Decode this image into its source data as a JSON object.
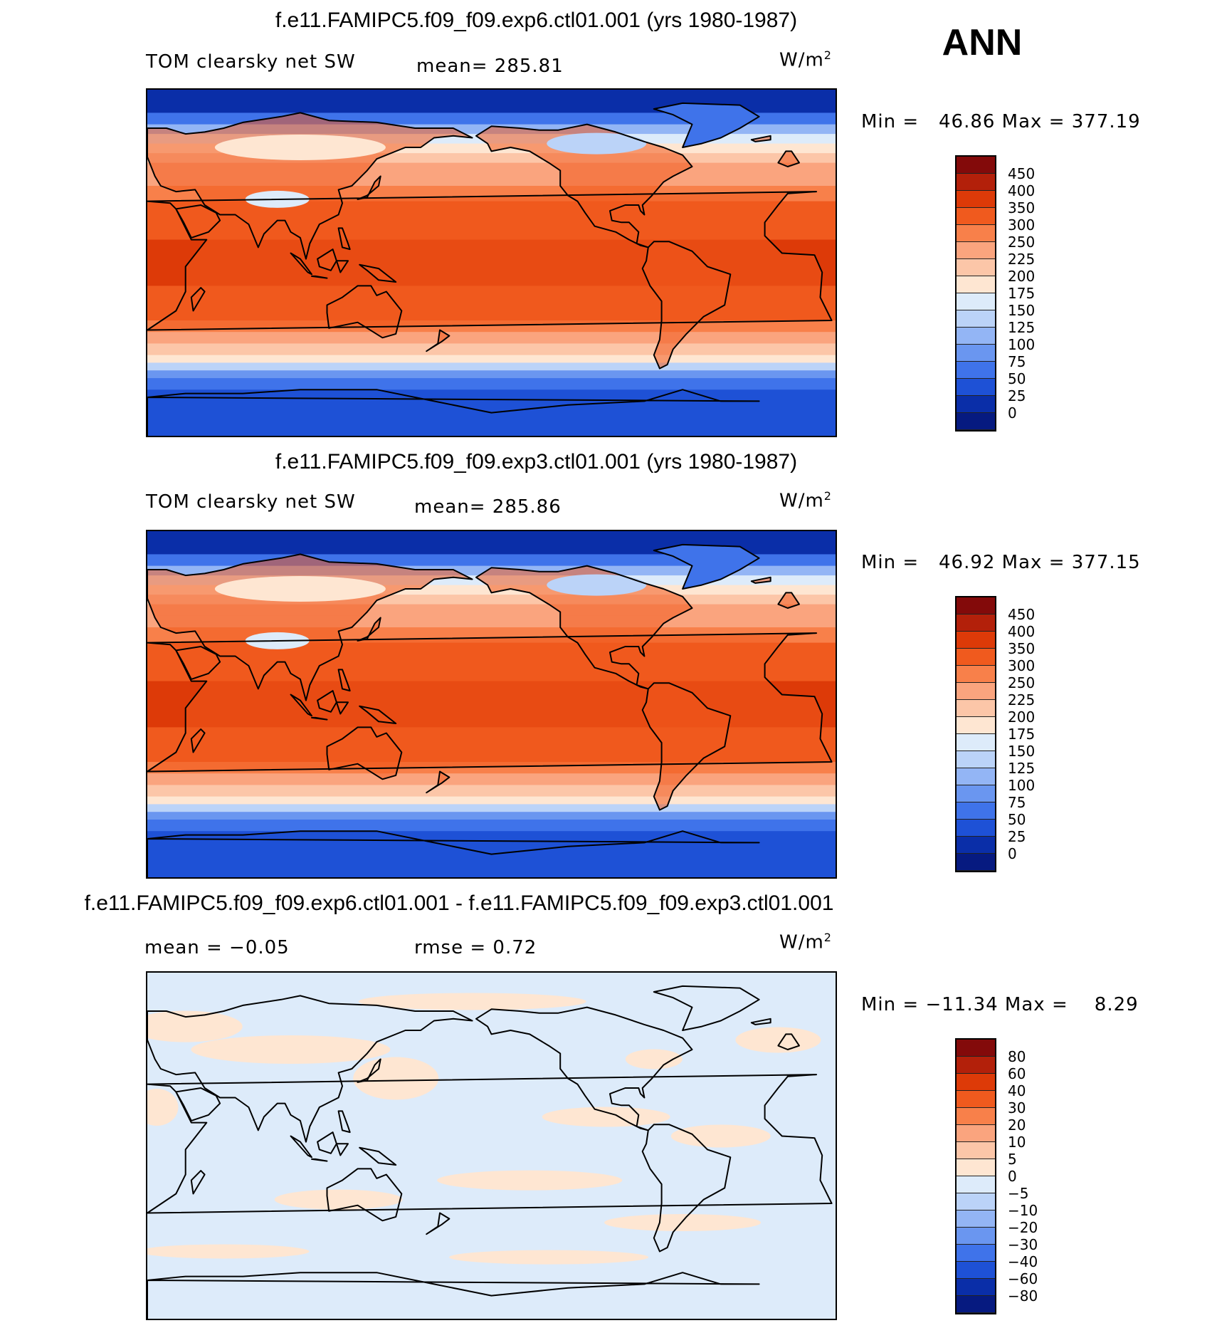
{
  "season": "ANN",
  "units_text": "W/m",
  "units_sup": "2",
  "panels": [
    {
      "title": "f.e11.FAMIPC5.f09_f09.exp6.ctl01.001 (yrs 1980-1987)",
      "left_label": "TOM clearsky net SW",
      "mid_label": "mean= 285.81",
      "stats": "Min =   46.86 Max = 377.19",
      "colorbar": {
        "labels": [
          "450",
          "400",
          "350",
          "300",
          "250",
          "225",
          "200",
          "175",
          "150",
          "125",
          "100",
          "75",
          "50",
          "25",
          "0"
        ],
        "colors": [
          "#830A0A",
          "#B3200A",
          "#DD3A08",
          "#F05A1E",
          "#F8804A",
          "#FAA47E",
          "#FCC6A8",
          "#FEE6D2",
          "#DDEBFA",
          "#BBD3F8",
          "#93B5F5",
          "#6A96F0",
          "#3F73EA",
          "#1E51D6",
          "#0A2EA8",
          "#061A80"
        ]
      }
    },
    {
      "title": "f.e11.FAMIPC5.f09_f09.exp3.ctl01.001 (yrs 1980-1987)",
      "left_label": "TOM clearsky net SW",
      "mid_label": "mean= 285.86",
      "stats": "Min =   46.92 Max = 377.15",
      "colorbar": {
        "labels": [
          "450",
          "400",
          "350",
          "300",
          "250",
          "225",
          "200",
          "175",
          "150",
          "125",
          "100",
          "75",
          "50",
          "25",
          "0"
        ],
        "colors": [
          "#830A0A",
          "#B3200A",
          "#DD3A08",
          "#F05A1E",
          "#F8804A",
          "#FAA47E",
          "#FCC6A8",
          "#FEE6D2",
          "#DDEBFA",
          "#BBD3F8",
          "#93B5F5",
          "#6A96F0",
          "#3F73EA",
          "#1E51D6",
          "#0A2EA8",
          "#061A80"
        ]
      }
    },
    {
      "title": "f.e11.FAMIPC5.f09_f09.exp6.ctl01.001 - f.e11.FAMIPC5.f09_f09.exp3.ctl01.001",
      "left_label": "mean =   −0.05",
      "mid_label": "rmse =    0.72",
      "stats": "Min = −11.34 Max =    8.29",
      "colorbar": {
        "labels": [
          "80",
          "60",
          "40",
          "30",
          "20",
          "10",
          "5",
          "0",
          "−5",
          "−10",
          "−20",
          "−30",
          "−40",
          "−60",
          "−80"
        ],
        "colors": [
          "#830A0A",
          "#B3200A",
          "#DD3A08",
          "#F05A1E",
          "#F8804A",
          "#FAA47E",
          "#FCC6A8",
          "#FEE6D2",
          "#DDEBFA",
          "#BBD3F8",
          "#93B5F5",
          "#6A96F0",
          "#3F73EA",
          "#1E51D6",
          "#0A2EA8",
          "#061A80"
        ]
      }
    }
  ]
}
